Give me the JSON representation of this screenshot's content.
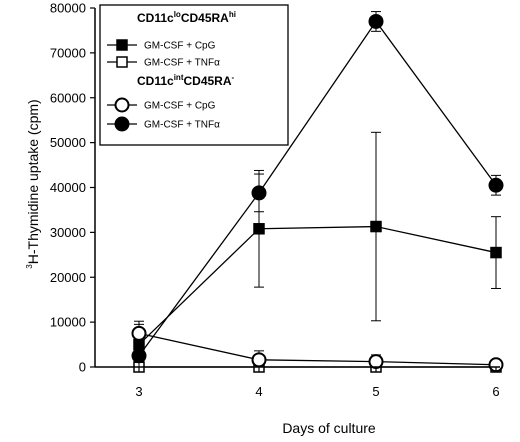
{
  "chart_data": {
    "type": "line",
    "x": [
      3,
      4,
      5,
      6
    ],
    "xlabel": "Days of culture",
    "ylabel": {
      "sup": "3",
      "main": "H-Thymidine uptake (cpm)"
    },
    "ylim": [
      0,
      80000
    ],
    "yticks": [
      0,
      10000,
      20000,
      30000,
      40000,
      50000,
      60000,
      70000,
      80000
    ],
    "xticks": [
      3,
      4,
      5,
      6
    ],
    "grid": false,
    "legend_position": "top-left",
    "legend_groups": [
      {
        "header": {
          "a": "CD11c",
          "a_sup": "lo",
          "b": "CD45RA",
          "b_sup": "hi"
        },
        "series_indices": [
          0,
          1
        ]
      },
      {
        "header": {
          "a": "CD11c",
          "a_sup": "int",
          "b": "CD45RA",
          "b_sup": "-"
        },
        "series_indices": [
          2,
          3
        ]
      }
    ],
    "series": [
      {
        "name": "GM-CSF + CpG",
        "marker": "square",
        "filled": true,
        "values": [
          5000,
          30800,
          31300,
          25500
        ],
        "errors": [
          5200,
          13000,
          21000,
          8000
        ]
      },
      {
        "name": "GM-CSF + TNFα",
        "marker": "square",
        "filled": false,
        "values": [
          0,
          0,
          0,
          0
        ],
        "errors": [
          0,
          0,
          0,
          0
        ]
      },
      {
        "name": "GM-CSF + CpG",
        "marker": "circle",
        "filled": false,
        "values": [
          7500,
          1600,
          1200,
          500
        ],
        "errors": [
          2000,
          2000,
          1500,
          500
        ]
      },
      {
        "name": "GM-CSF + TNFα",
        "marker": "circle",
        "filled": true,
        "values": [
          2500,
          38800,
          77000,
          40500
        ],
        "errors": [
          1500,
          4200,
          2200,
          2200
        ]
      }
    ]
  }
}
